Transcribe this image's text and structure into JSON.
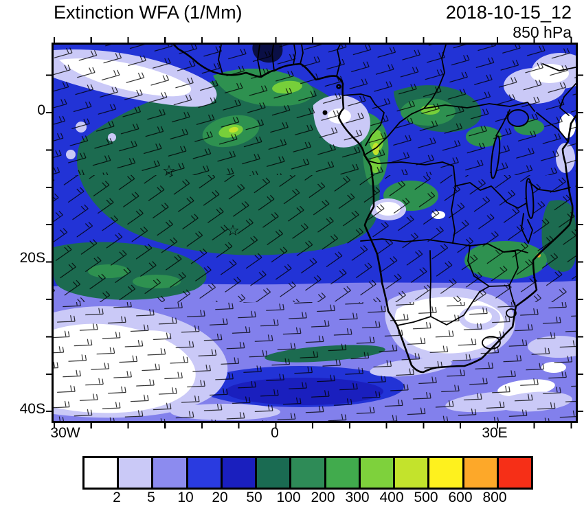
{
  "header": {
    "title": "Extinction WFA (1/Mm)",
    "timestamp": "2018-10-15_12",
    "level": "850 hPa"
  },
  "axes": {
    "y": [
      "0",
      "20S",
      "40S"
    ],
    "x": [
      "30W",
      "0",
      "30E"
    ]
  },
  "colorbar": {
    "labels": [
      "2",
      "5",
      "10",
      "20",
      "50",
      "100",
      "200",
      "300",
      "400",
      "500",
      "600",
      "800"
    ],
    "colors": [
      "#ffffff",
      "#cac9f7",
      "#8c8bef",
      "#2a3be0",
      "#1a1fbe",
      "#1a6b52",
      "#2e8b57",
      "#41ab4d",
      "#7ed13c",
      "#c3e32c",
      "#fef11e",
      "#fda829",
      "#f62f17"
    ]
  },
  "palette": {
    "ocean": "#2233d6",
    "deep": "#1a1fbe",
    "periwinkle": "#8280ec",
    "lavender": "#cac9f7",
    "white": "#ffffff",
    "dark_green": "#1c6b50",
    "green": "#2e9150",
    "light_green": "#77cf3a",
    "yellow_green": "#c3e32c",
    "navy": "#0a0f45",
    "orange": "#fda829"
  },
  "markers": {
    "star": "☆"
  },
  "chart_data": {
    "type": "heatmap",
    "title": "Extinction WFA (1/Mm)",
    "subtitle": "2018-10-15_12 at 850 hPa",
    "x": {
      "tick_labels": [
        "30W",
        "0",
        "30E"
      ],
      "range_deg_lon": [
        -30,
        40
      ]
    },
    "y": {
      "tick_labels": [
        "0",
        "20S",
        "40S"
      ],
      "range_deg_lat": [
        -42,
        10
      ]
    },
    "levels_1_per_Mm": [
      2,
      5,
      10,
      20,
      50,
      100,
      200,
      300,
      400,
      500,
      600,
      800
    ],
    "level_colors": [
      "#ffffff",
      "#cac9f7",
      "#8c8bef",
      "#2a3be0",
      "#1a1fbe",
      "#1a6b52",
      "#2e8b57",
      "#41ab4d",
      "#7ed13c",
      "#c3e32c",
      "#fef11e",
      "#fda829",
      "#f62f17"
    ],
    "legend_position": "bottom",
    "overlays": [
      "wind-barbs",
      "coastline",
      "country-borders",
      "star-markers"
    ]
  }
}
